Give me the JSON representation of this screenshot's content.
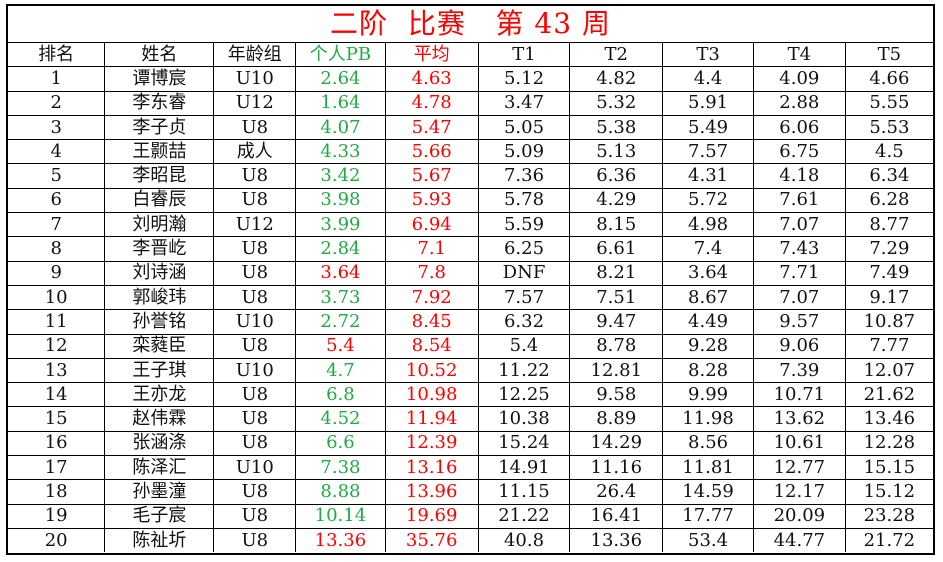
{
  "title": "二阶  比赛   第 43 周",
  "headers": [
    "排名",
    "姓名",
    "年龄组",
    "个人PB",
    "平均",
    "T1",
    "T2",
    "T3",
    "T4",
    "T5"
  ],
  "colors": {
    "title": "#ff0000",
    "pb_good": "#22aa44",
    "pb_bad": "#ff0000",
    "average": "#ff0000",
    "border": "#000000"
  },
  "rows": [
    {
      "rank": "1",
      "name": "谭博宸",
      "group": "U10",
      "pb": "2.64",
      "pb_red": false,
      "avg": "4.63",
      "t": [
        "5.12",
        "4.82",
        "4.4",
        "4.09",
        "4.66"
      ]
    },
    {
      "rank": "2",
      "name": "李东睿",
      "group": "U12",
      "pb": "1.64",
      "pb_red": false,
      "avg": "4.78",
      "t": [
        "3.47",
        "5.32",
        "5.91",
        "2.88",
        "5.55"
      ]
    },
    {
      "rank": "3",
      "name": "李子贞",
      "group": "U8",
      "pb": "4.07",
      "pb_red": false,
      "avg": "5.47",
      "t": [
        "5.05",
        "5.38",
        "5.49",
        "6.06",
        "5.53"
      ]
    },
    {
      "rank": "4",
      "name": "王颢喆",
      "group": "成人",
      "pb": "4.33",
      "pb_red": false,
      "avg": "5.66",
      "t": [
        "5.09",
        "5.13",
        "7.57",
        "6.75",
        "4.5"
      ]
    },
    {
      "rank": "5",
      "name": "李昭昆",
      "group": "U8",
      "pb": "3.42",
      "pb_red": false,
      "avg": "5.67",
      "t": [
        "7.36",
        "6.36",
        "4.31",
        "4.18",
        "6.34"
      ]
    },
    {
      "rank": "6",
      "name": "白睿辰",
      "group": "U8",
      "pb": "3.98",
      "pb_red": false,
      "avg": "5.93",
      "t": [
        "5.78",
        "4.29",
        "5.72",
        "7.61",
        "6.28"
      ]
    },
    {
      "rank": "7",
      "name": "刘明瀚",
      "group": "U12",
      "pb": "3.99",
      "pb_red": false,
      "avg": "6.94",
      "t": [
        "5.59",
        "8.15",
        "4.98",
        "7.07",
        "8.77"
      ]
    },
    {
      "rank": "8",
      "name": "李晋屹",
      "group": "U8",
      "pb": "2.84",
      "pb_red": false,
      "avg": "7.1",
      "t": [
        "6.25",
        "6.61",
        "7.4",
        "7.43",
        "7.29"
      ]
    },
    {
      "rank": "9",
      "name": "刘诗涵",
      "group": "U8",
      "pb": "3.64",
      "pb_red": true,
      "avg": "7.8",
      "t": [
        "DNF",
        "8.21",
        "3.64",
        "7.71",
        "7.49"
      ]
    },
    {
      "rank": "10",
      "name": "郭峻玮",
      "group": "U8",
      "pb": "3.73",
      "pb_red": false,
      "avg": "7.92",
      "t": [
        "7.57",
        "7.51",
        "8.67",
        "7.07",
        "9.17"
      ]
    },
    {
      "rank": "11",
      "name": "孙誉铭",
      "group": "U10",
      "pb": "2.72",
      "pb_red": false,
      "avg": "8.45",
      "t": [
        "6.32",
        "9.47",
        "4.49",
        "9.57",
        "10.87"
      ]
    },
    {
      "rank": "12",
      "name": "栾蕤臣",
      "group": "U8",
      "pb": "5.4",
      "pb_red": true,
      "avg": "8.54",
      "t": [
        "5.4",
        "8.78",
        "9.28",
        "9.06",
        "7.77"
      ]
    },
    {
      "rank": "13",
      "name": "王子琪",
      "group": "U10",
      "pb": "4.7",
      "pb_red": false,
      "avg": "10.52",
      "t": [
        "11.22",
        "12.81",
        "8.28",
        "7.39",
        "12.07"
      ]
    },
    {
      "rank": "14",
      "name": "王亦龙",
      "group": "U8",
      "pb": "6.8",
      "pb_red": false,
      "avg": "10.98",
      "t": [
        "12.25",
        "9.58",
        "9.99",
        "10.71",
        "21.62"
      ]
    },
    {
      "rank": "15",
      "name": "赵伟霖",
      "group": "U8",
      "pb": "4.52",
      "pb_red": false,
      "avg": "11.94",
      "t": [
        "10.38",
        "8.89",
        "11.98",
        "13.62",
        "13.46"
      ]
    },
    {
      "rank": "16",
      "name": "张涵涤",
      "group": "U8",
      "pb": "6.6",
      "pb_red": false,
      "avg": "12.39",
      "t": [
        "15.24",
        "14.29",
        "8.56",
        "10.61",
        "12.28"
      ]
    },
    {
      "rank": "17",
      "name": "陈泽汇",
      "group": "U10",
      "pb": "7.38",
      "pb_red": false,
      "avg": "13.16",
      "t": [
        "14.91",
        "11.16",
        "11.81",
        "12.77",
        "15.15"
      ]
    },
    {
      "rank": "18",
      "name": "孙墨潼",
      "group": "U8",
      "pb": "8.88",
      "pb_red": false,
      "avg": "13.96",
      "t": [
        "11.15",
        "26.4",
        "14.59",
        "12.17",
        "15.12"
      ]
    },
    {
      "rank": "19",
      "name": "毛子宸",
      "group": "U8",
      "pb": "10.14",
      "pb_red": false,
      "avg": "19.69",
      "t": [
        "21.22",
        "16.41",
        "17.77",
        "20.09",
        "23.28"
      ]
    },
    {
      "rank": "20",
      "name": "陈祉圻",
      "group": "U8",
      "pb": "13.36",
      "pb_red": true,
      "avg": "35.76",
      "t": [
        "40.8",
        "13.36",
        "53.4",
        "44.77",
        "21.72"
      ]
    }
  ]
}
